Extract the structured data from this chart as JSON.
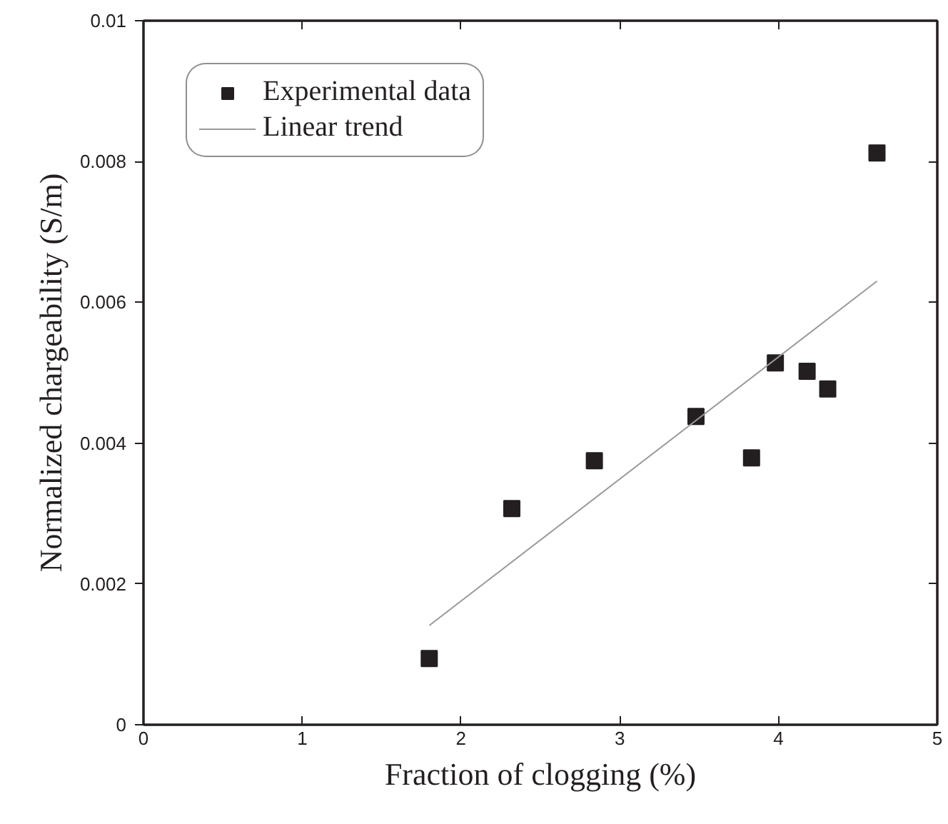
{
  "chart_data": {
    "type": "scatter",
    "xlabel": "Fraction of clogging (%)",
    "ylabel": "Normalized chargeability (S/m)",
    "xlim": [
      0,
      5
    ],
    "ylim": [
      0,
      0.01
    ],
    "xticks": [
      0,
      1,
      2,
      3,
      4,
      5
    ],
    "yticks": [
      0,
      0.002,
      0.004,
      0.006,
      0.008,
      0.01
    ],
    "grid": false,
    "legend": "top left",
    "series": [
      {
        "name": "Experimental data",
        "marker": "square",
        "color": "#231f20",
        "x": [
          1.8,
          2.32,
          2.84,
          3.48,
          3.83,
          3.98,
          4.18,
          4.31,
          4.62
        ],
        "values": [
          0.00094,
          0.00307,
          0.00375,
          0.00438,
          0.00379,
          0.00514,
          0.00502,
          0.00477,
          0.00812
        ]
      },
      {
        "name": "Linear trend",
        "type": "line",
        "marker": "none",
        "line_style": "solid",
        "color": "#999999",
        "x": [
          1.8,
          4.62
        ],
        "values": [
          0.00141,
          0.0063
        ]
      }
    ]
  }
}
